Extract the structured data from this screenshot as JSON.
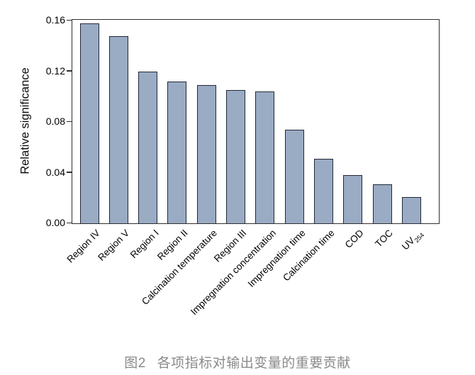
{
  "figure": {
    "caption_label": "图2",
    "caption_text": "各项指标对输出变量的重要贡献"
  },
  "chart_data": {
    "type": "bar",
    "title": "",
    "ylabel": "Relative significance",
    "xlabel": "",
    "ylim": [
      0,
      0.16
    ],
    "ytick_labels": [
      "0.00",
      "0.04",
      "0.08",
      "0.12",
      "0.16"
    ],
    "ytick_values": [
      0,
      0.04,
      0.08,
      0.12,
      0.16
    ],
    "grid": false,
    "legend": null,
    "categories": [
      {
        "label": "Region IV"
      },
      {
        "label": "Region V"
      },
      {
        "label": "Region I"
      },
      {
        "label": "Region II"
      },
      {
        "label": "Calcination temperature"
      },
      {
        "label": "Region III"
      },
      {
        "label": "Impregnation concentration"
      },
      {
        "label": "Impregnation time"
      },
      {
        "label": "Calcination time"
      },
      {
        "label": "COD"
      },
      {
        "label": "TOC"
      },
      {
        "label": "UV",
        "sub": "254"
      }
    ],
    "values": [
      0.158,
      0.148,
      0.12,
      0.112,
      0.109,
      0.105,
      0.104,
      0.074,
      0.051,
      0.038,
      0.031,
      0.021
    ],
    "colors": {
      "bar_fill": "#9aabc4",
      "bar_border": "#222a38",
      "axis": "#2e2e2e",
      "caption": "#8a8a8a"
    }
  }
}
